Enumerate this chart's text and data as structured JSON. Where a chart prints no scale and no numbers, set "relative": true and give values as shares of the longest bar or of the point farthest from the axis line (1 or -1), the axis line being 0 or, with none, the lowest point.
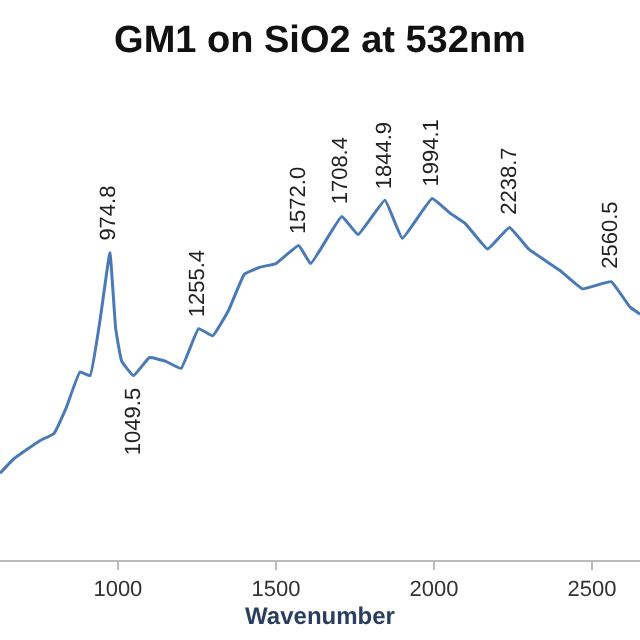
{
  "chart_data": {
    "type": "line",
    "title": "GM1 on SiO2 at 532nm",
    "xlabel": "Wavenumber",
    "relative": true,
    "xlim": [
      627,
      2652
    ],
    "xticks": [
      1000,
      1500,
      2000,
      2500
    ],
    "marker": "none",
    "line_style": "solid",
    "tick_labels": "x",
    "series": [
      {
        "color": "#4a7ab5",
        "x": [
          627,
          671,
          753,
          798,
          836,
          880,
          912,
          943,
          974.8,
          993,
          1012,
          1049.5,
          1100,
          1150,
          1200,
          1255.4,
          1300,
          1350,
          1400,
          1450,
          1500,
          1572.0,
          1610,
          1708.4,
          1760,
          1844.9,
          1900,
          1994.1,
          2050,
          2100,
          2170,
          2238.7,
          2300,
          2400,
          2470,
          2560.5,
          2620,
          2652
        ],
        "values": [
          0.24,
          0.28,
          0.33,
          0.35,
          0.42,
          0.52,
          0.51,
          0.66,
          0.85,
          0.64,
          0.55,
          0.51,
          0.56,
          0.55,
          0.53,
          0.64,
          0.62,
          0.69,
          0.79,
          0.81,
          0.82,
          0.87,
          0.82,
          0.95,
          0.9,
          0.995,
          0.89,
          1.0,
          0.96,
          0.93,
          0.86,
          0.92,
          0.86,
          0.8,
          0.75,
          0.77,
          0.7,
          0.68
        ]
      }
    ],
    "annotations": [
      {
        "text": "974.8",
        "x": 974.8,
        "y": 0.85
      },
      {
        "text": "1049.5",
        "x": 1049.5,
        "y": 0.51
      },
      {
        "text": "1255.4",
        "x": 1255.4,
        "y": 0.64
      },
      {
        "text": "1572.0",
        "x": 1572.0,
        "y": 0.87
      },
      {
        "text": "1708.4",
        "x": 1708.4,
        "y": 0.95
      },
      {
        "text": "1844.9",
        "x": 1844.9,
        "y": 0.995
      },
      {
        "text": "1994.1",
        "x": 1994.1,
        "y": 1.0
      },
      {
        "text": "2238.7",
        "x": 2238.7,
        "y": 0.92
      },
      {
        "text": "2560.5",
        "x": 2560.5,
        "y": 0.77
      }
    ]
  }
}
